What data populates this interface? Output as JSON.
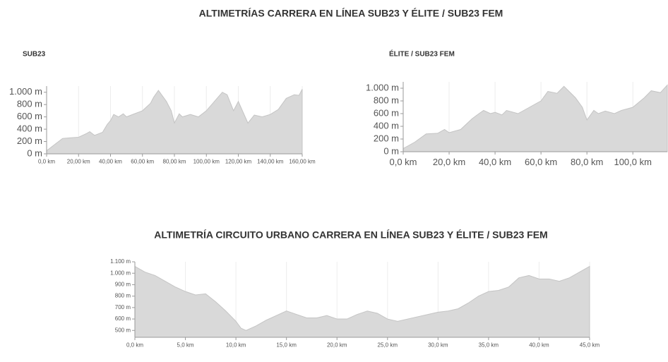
{
  "headings": [
    "ALTIMETRÍAS CARRERA EN LÍNEA SUB23 Y ÉLITE / SUB23 FEM",
    "ALTIMETRÍA CIRCUITO URBANO CARRERA EN LÍNEA SUB23 Y ÉLITE / SUB23 FEM"
  ],
  "chart_data": [
    {
      "type": "area",
      "title": "SUB23",
      "color": "#d9d9d9",
      "grid": true,
      "x": [
        0,
        5,
        10,
        15,
        20,
        25,
        27,
        30,
        35,
        38,
        40,
        42,
        45,
        48,
        50,
        55,
        60,
        65,
        67,
        70,
        75,
        78,
        80,
        83,
        85,
        90,
        95,
        100,
        105,
        110,
        113,
        117,
        120,
        126,
        130,
        135,
        140,
        145,
        150,
        155,
        158,
        160
      ],
      "values": [
        50,
        150,
        250,
        260,
        270,
        330,
        360,
        300,
        350,
        480,
        540,
        640,
        600,
        650,
        600,
        650,
        700,
        820,
        920,
        1030,
        850,
        700,
        500,
        650,
        600,
        640,
        600,
        700,
        850,
        1000,
        960,
        700,
        850,
        500,
        630,
        600,
        640,
        720,
        900,
        960,
        950,
        1050
      ],
      "xlim": [
        0,
        160
      ],
      "ylim": [
        0,
        1100
      ],
      "xticks": [
        {
          "value": 0,
          "label": "0,0 km"
        },
        {
          "value": 20,
          "label": "20,00 km"
        },
        {
          "value": 40,
          "label": "40,00 km"
        },
        {
          "value": 60,
          "label": "60,00 km"
        },
        {
          "value": 80,
          "label": "80,00 km"
        },
        {
          "value": 100,
          "label": "100,00 km"
        },
        {
          "value": 120,
          "label": "120,00 km"
        },
        {
          "value": 140,
          "label": "140,00 km"
        },
        {
          "value": 160,
          "label": "160,00 km"
        }
      ],
      "yticks": [
        {
          "value": 0,
          "label": "0 m"
        },
        {
          "value": 200,
          "label": "200 m"
        },
        {
          "value": 400,
          "label": "400 m"
        },
        {
          "value": 600,
          "label": "600 m"
        },
        {
          "value": 800,
          "label": "800 m"
        },
        {
          "value": 1000,
          "label": "1.000 m"
        }
      ]
    },
    {
      "type": "area",
      "title": "ÉLITE / SUB23 FEM",
      "color": "#d9d9d9",
      "grid": true,
      "x": [
        0,
        5,
        10,
        15,
        18,
        20,
        25,
        30,
        33,
        35,
        38,
        40,
        43,
        45,
        50,
        55,
        60,
        63,
        67,
        70,
        75,
        78,
        80,
        83,
        85,
        88,
        92,
        95,
        100,
        105,
        108,
        112,
        115
      ],
      "values": [
        50,
        150,
        280,
        290,
        350,
        300,
        350,
        520,
        600,
        650,
        600,
        620,
        580,
        650,
        600,
        700,
        800,
        950,
        920,
        1030,
        850,
        700,
        500,
        650,
        600,
        640,
        600,
        650,
        700,
        850,
        960,
        930,
        1050
      ],
      "xlim": [
        0,
        115
      ],
      "ylim": [
        0,
        1100
      ],
      "xticks": [
        {
          "value": 0,
          "label": "0,0 km"
        },
        {
          "value": 20,
          "label": "20,0 km"
        },
        {
          "value": 40,
          "label": "40,0 km"
        },
        {
          "value": 60,
          "label": "60,0 km"
        },
        {
          "value": 80,
          "label": "80,0 km"
        },
        {
          "value": 100,
          "label": "100,0 km"
        }
      ],
      "yticks": [
        {
          "value": 0,
          "label": "0 m"
        },
        {
          "value": 200,
          "label": "200 m"
        },
        {
          "value": 400,
          "label": "400 m"
        },
        {
          "value": 600,
          "label": "600 m"
        },
        {
          "value": 800,
          "label": "800 m"
        },
        {
          "value": 1000,
          "label": "1.000 m"
        }
      ]
    },
    {
      "type": "area",
      "color": "#d9d9d9",
      "grid": true,
      "x": [
        0,
        1,
        2,
        3,
        4,
        5,
        6,
        7,
        8,
        9,
        10,
        10.5,
        11,
        12,
        13,
        14,
        15,
        16,
        17,
        18,
        19,
        20,
        21,
        22,
        23,
        24,
        25,
        26,
        27,
        28,
        29,
        30,
        31,
        32,
        33,
        34,
        35,
        36,
        37,
        38,
        39,
        40,
        41,
        42,
        43,
        44,
        45
      ],
      "values": [
        1060,
        1010,
        980,
        930,
        880,
        840,
        810,
        820,
        750,
        670,
        580,
        520,
        500,
        540,
        590,
        630,
        670,
        640,
        610,
        610,
        630,
        600,
        600,
        640,
        670,
        650,
        600,
        580,
        600,
        620,
        640,
        660,
        670,
        690,
        740,
        800,
        840,
        850,
        880,
        960,
        980,
        950,
        950,
        930,
        960,
        1010,
        1060
      ],
      "xlim": [
        0,
        45
      ],
      "ylim": [
        440,
        1100
      ],
      "xticks": [
        {
          "value": 0,
          "label": "0,0 km"
        },
        {
          "value": 5,
          "label": "5,0 km"
        },
        {
          "value": 10,
          "label": "10,0 km"
        },
        {
          "value": 15,
          "label": "15,0 km"
        },
        {
          "value": 20,
          "label": "20,0 km"
        },
        {
          "value": 25,
          "label": "25,0 km"
        },
        {
          "value": 30,
          "label": "30,0 km"
        },
        {
          "value": 35,
          "label": "35,0 km"
        },
        {
          "value": 40,
          "label": "40,0 km"
        },
        {
          "value": 45,
          "label": "45,0 km"
        }
      ],
      "yticks": [
        {
          "value": 500,
          "label": "500 m"
        },
        {
          "value": 600,
          "label": "600 m"
        },
        {
          "value": 700,
          "label": "700 m"
        },
        {
          "value": 800,
          "label": "800 m"
        },
        {
          "value": 900,
          "label": "900 m"
        },
        {
          "value": 1000,
          "label": "1.000 m"
        },
        {
          "value": 1100,
          "label": "1.100 m"
        }
      ]
    }
  ]
}
